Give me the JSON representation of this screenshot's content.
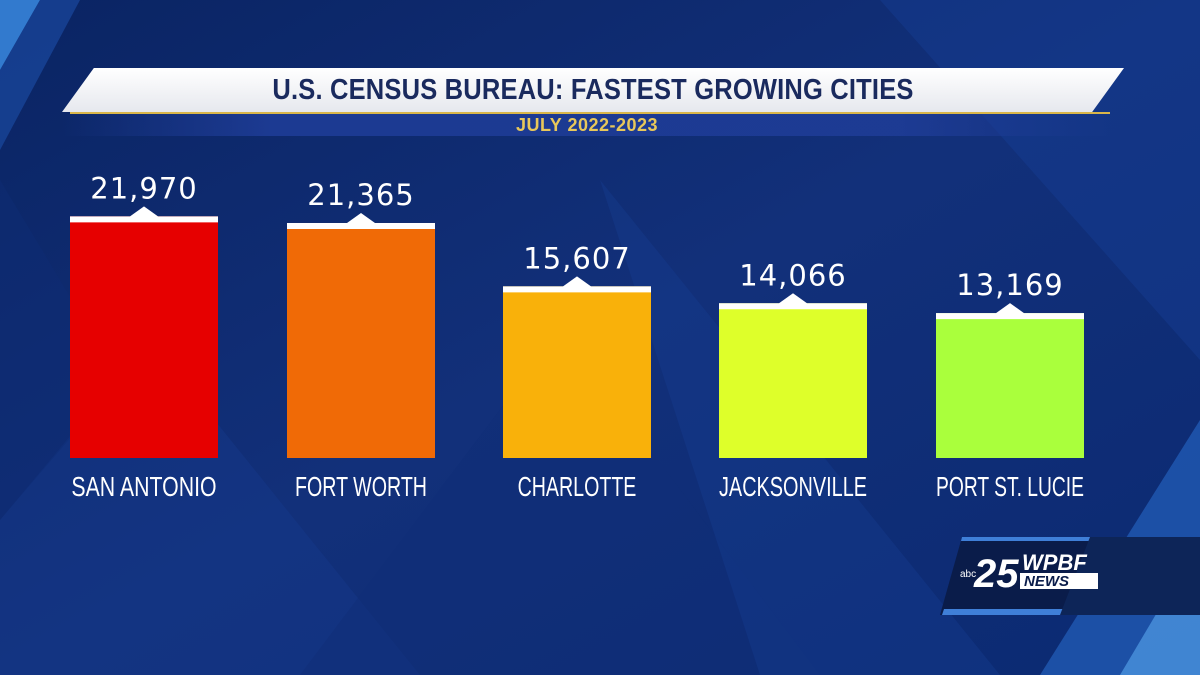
{
  "header": {
    "title": "U.S. CENSUS BUREAU: FASTEST GROWING CITIES",
    "subtitle": "JULY 2022-2023"
  },
  "chart_data": {
    "type": "bar",
    "title": "U.S. CENSUS BUREAU: FASTEST GROWING CITIES",
    "subtitle": "JULY 2022-2023",
    "categories": [
      "SAN ANTONIO",
      "FORT WORTH",
      "CHARLOTTE",
      "JACKSONVILLE",
      "PORT ST. LUCIE"
    ],
    "values": [
      21970,
      21365,
      15607,
      14066,
      13169
    ],
    "value_labels": [
      "21,970",
      "21,365",
      "15,607",
      "14,066",
      "13,169"
    ],
    "colors": [
      "#e60000",
      "#f06a06",
      "#f9b10a",
      "#deff2a",
      "#aaff3c"
    ],
    "xlabel": "",
    "ylabel": "",
    "grid": false
  },
  "logo": {
    "network": "abc",
    "channel": "25",
    "station": "WPBF",
    "brand": "NEWS"
  }
}
